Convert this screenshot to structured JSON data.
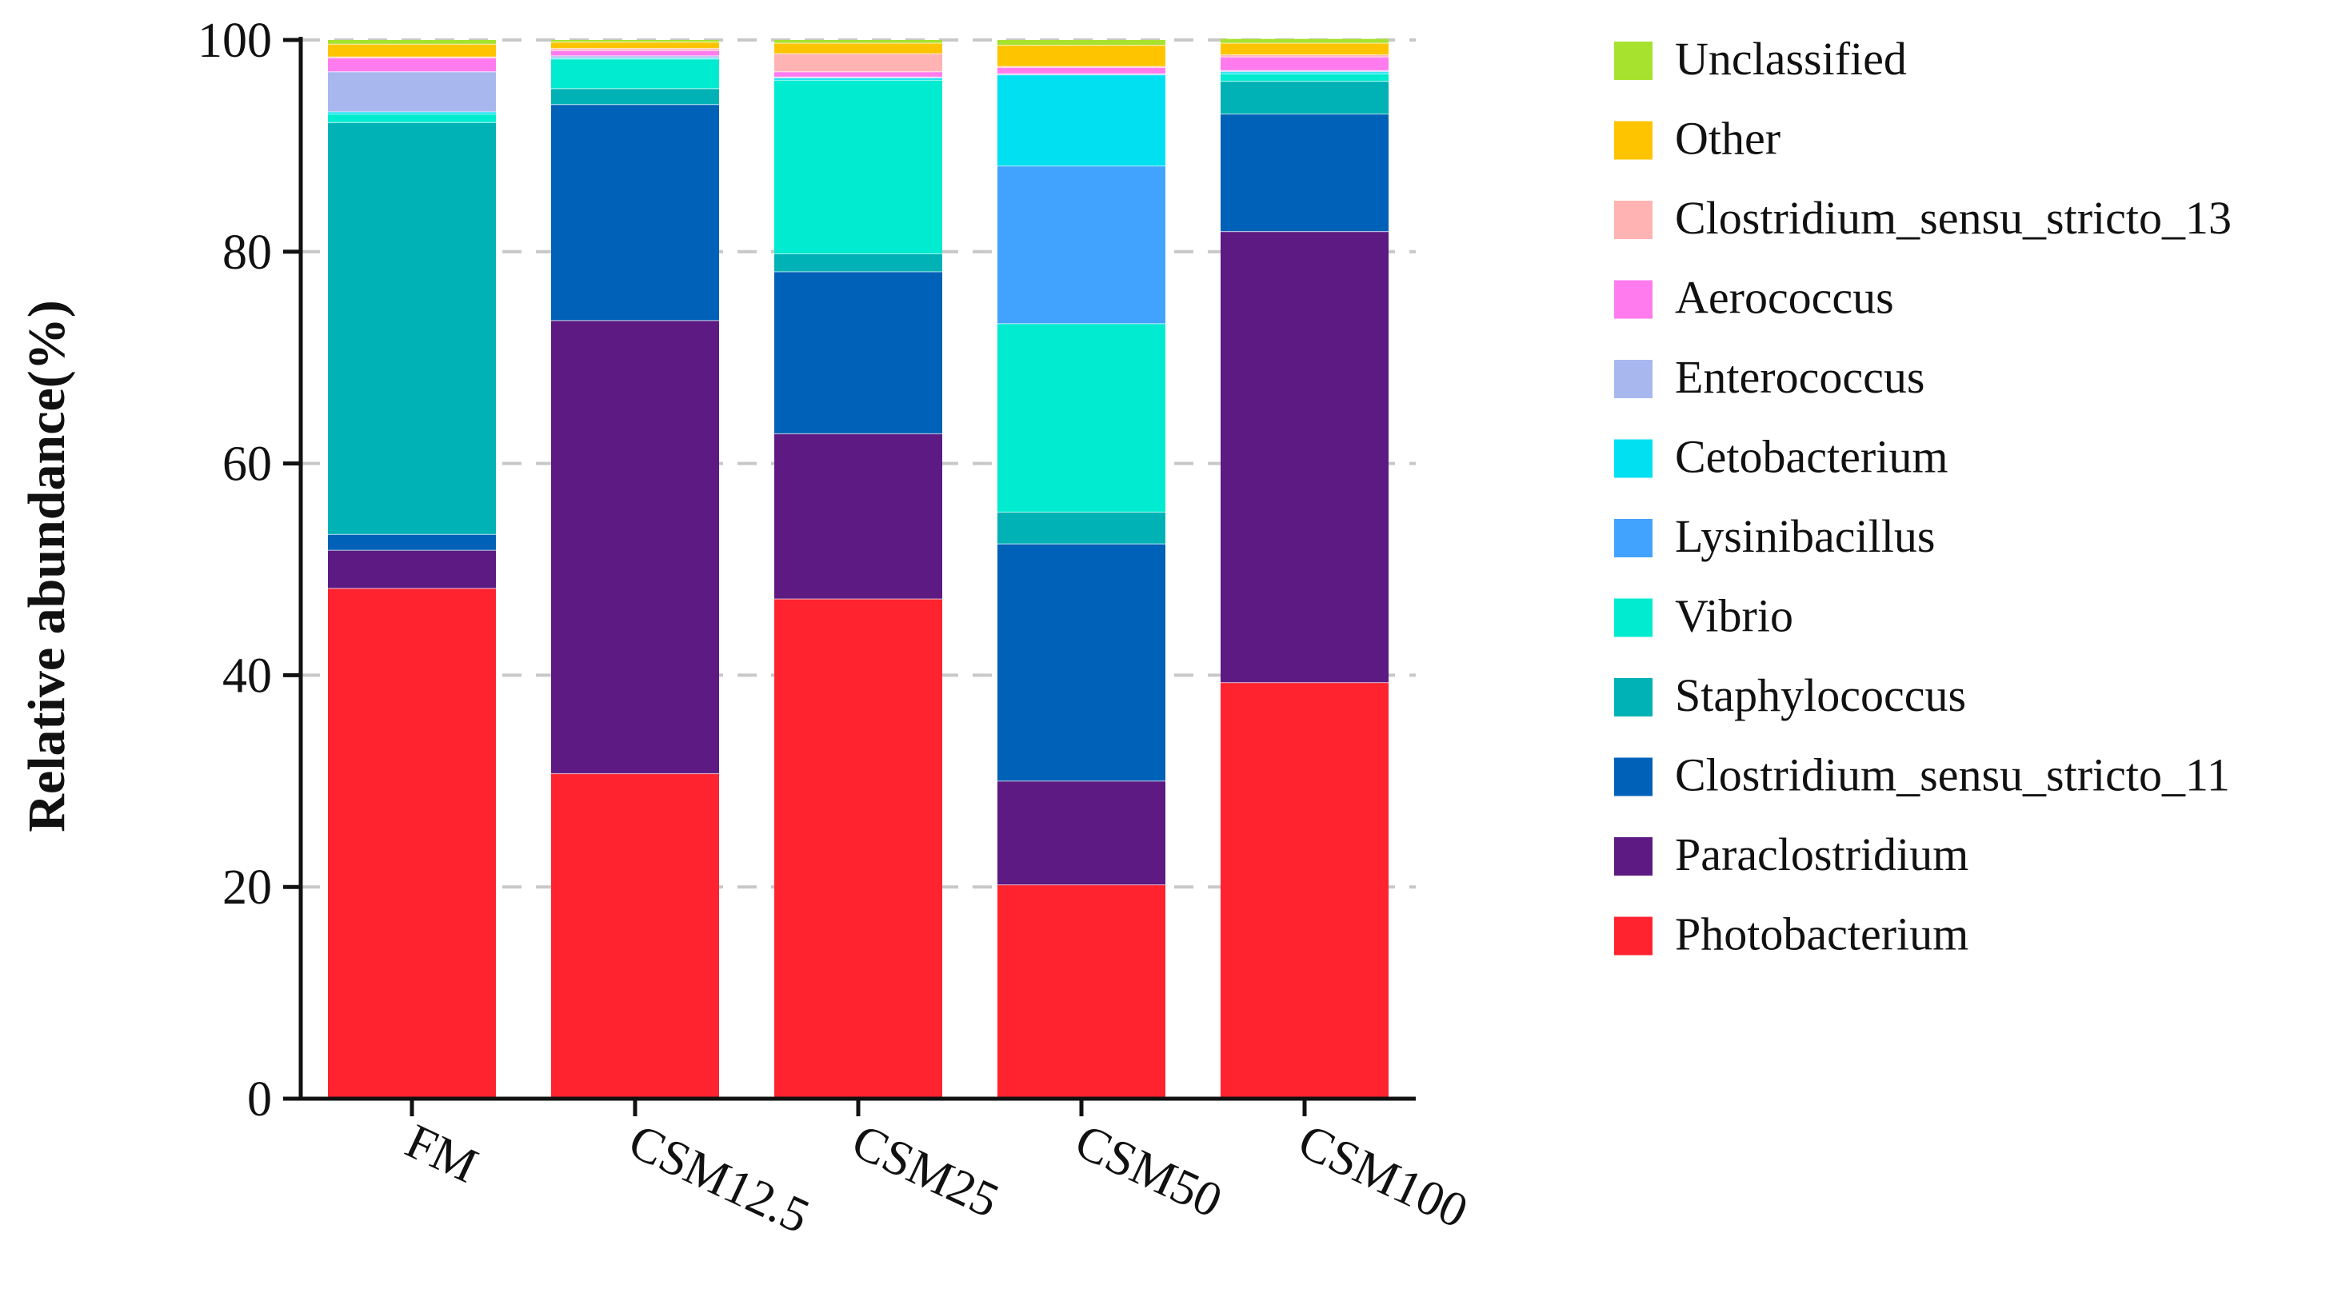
{
  "chart_data": {
    "type": "bar",
    "stacked": true,
    "title": "",
    "xlabel": "",
    "ylabel": "Relative abundance(%)",
    "ylim": [
      0,
      100
    ],
    "yticks": [
      0,
      20,
      40,
      60,
      80,
      100
    ],
    "grid": true,
    "legend_position": "right",
    "categories": [
      "FM",
      "CSM12.5",
      "CSM25",
      "CSM50",
      "CSM100"
    ],
    "series": [
      {
        "name": "Photobacterium",
        "color": "#FF2330",
        "values": [
          48.2,
          30.7,
          47.2,
          20.2,
          39.3
        ]
      },
      {
        "name": "Paraclostridium",
        "color": "#5C1A82",
        "values": [
          3.6,
          42.8,
          15.6,
          9.8,
          42.6
        ]
      },
      {
        "name": "Clostridium_sensu_stricto_11",
        "color": "#0061B8",
        "values": [
          1.5,
          20.4,
          15.3,
          22.4,
          11.1
        ]
      },
      {
        "name": "Staphylococcus",
        "color": "#00B2B5",
        "values": [
          38.9,
          1.5,
          1.7,
          3.0,
          3.1
        ]
      },
      {
        "name": "Vibrio",
        "color": "#00EBCF",
        "values": [
          0.8,
          2.8,
          16.4,
          17.8,
          0.7
        ]
      },
      {
        "name": "Lysinibacillus",
        "color": "#42A3FF",
        "values": [
          0.0,
          0.0,
          0.0,
          14.9,
          0.0
        ]
      },
      {
        "name": "Cetobacterium",
        "color": "#00E0F0",
        "values": [
          0.2,
          0.1,
          0.2,
          8.6,
          0.2
        ]
      },
      {
        "name": "Enterococcus",
        "color": "#A8B8EE",
        "values": [
          3.8,
          0.2,
          0.1,
          0.1,
          0.1
        ]
      },
      {
        "name": "Aerococcus",
        "color": "#FF7BEE",
        "values": [
          1.3,
          0.5,
          0.5,
          0.6,
          1.3
        ]
      },
      {
        "name": "Clostridium_sensu_stricto_13",
        "color": "#FFB3B3",
        "values": [
          0.1,
          0.2,
          1.7,
          0.1,
          0.2
        ]
      },
      {
        "name": "Other",
        "color": "#FFC400",
        "values": [
          1.2,
          0.6,
          1.0,
          2.0,
          1.1
        ]
      },
      {
        "name": "Unclassified",
        "color": "#A7E22E",
        "values": [
          0.4,
          0.2,
          0.3,
          0.5,
          0.4
        ]
      }
    ]
  }
}
